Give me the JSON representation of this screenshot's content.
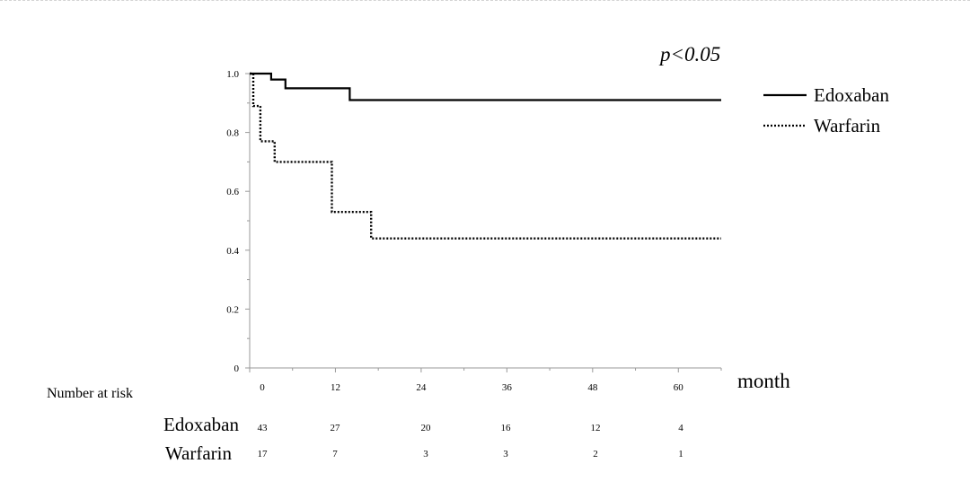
{
  "chart_data": {
    "type": "line",
    "annotation": "p<0.05",
    "xlabel": "month",
    "ylabel": "",
    "xlim": [
      0,
      66
    ],
    "ylim": [
      0,
      1.0
    ],
    "x_ticks": [
      0,
      12,
      24,
      36,
      48,
      60
    ],
    "y_ticks": [
      0,
      0.2,
      0.4,
      0.6,
      0.8,
      1.0
    ],
    "y_tick_labels": [
      "0",
      "0.2",
      "0.4",
      "0.6",
      "0.8",
      "1.0"
    ],
    "legend_position": "right",
    "series": [
      {
        "name": "Edoxaban",
        "style": "solid",
        "x": [
          0,
          3,
          3,
          5,
          5,
          14,
          14,
          66
        ],
        "y": [
          1.0,
          1.0,
          0.98,
          0.98,
          0.95,
          0.95,
          0.91,
          0.91
        ]
      },
      {
        "name": "Warfarin",
        "style": "dotted",
        "x": [
          0,
          0.5,
          0.5,
          1.5,
          1.5,
          3.5,
          3.5,
          11.5,
          11.5,
          17,
          17,
          66
        ],
        "y": [
          1.0,
          1.0,
          0.89,
          0.89,
          0.77,
          0.77,
          0.7,
          0.7,
          0.53,
          0.53,
          0.44,
          0.44
        ]
      }
    ],
    "number_at_risk": {
      "title": "Number at risk",
      "groups": [
        {
          "name": "Edoxaban",
          "values": [
            43,
            27,
            20,
            16,
            12,
            4
          ]
        },
        {
          "name": "Warfarin",
          "values": [
            17,
            7,
            3,
            3,
            2,
            1
          ]
        }
      ]
    }
  }
}
